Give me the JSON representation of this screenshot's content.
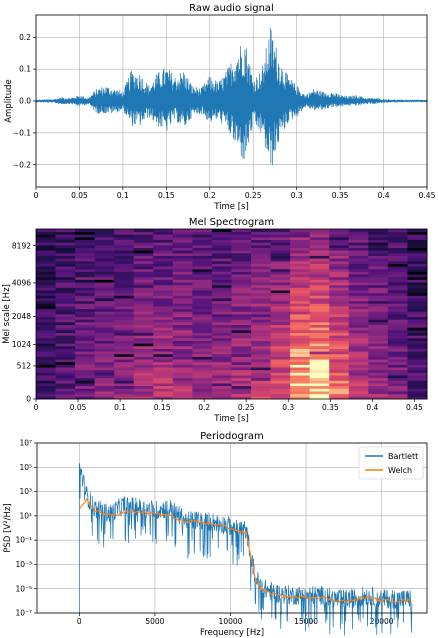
{
  "chart_data": [
    {
      "type": "line",
      "title": "Raw audio signal",
      "xlabel": "Time [s]",
      "ylabel": "Amplitude",
      "xlim": [
        0,
        0.45
      ],
      "ylim": [
        -0.27,
        0.27
      ],
      "xticks": [
        0,
        0.05,
        0.1,
        0.15,
        0.2,
        0.25,
        0.3,
        0.35,
        0.4,
        0.45
      ],
      "xtick_labels": [
        "0",
        "0.05",
        "0.1",
        "0.15",
        "0.2",
        "0.25",
        "0.3",
        "0.35",
        "0.4",
        "0.45"
      ],
      "yticks": [
        -0.2,
        -0.1,
        0.0,
        0.1,
        0.2
      ],
      "ytick_labels": [
        "−0.2",
        "−0.1",
        "0.0",
        "0.1",
        "0.2"
      ],
      "grid": true,
      "color": "#1f77b4",
      "envelope": {
        "x": [
          0,
          0.02,
          0.03,
          0.04,
          0.05,
          0.06,
          0.07,
          0.08,
          0.09,
          0.1,
          0.11,
          0.12,
          0.13,
          0.14,
          0.15,
          0.16,
          0.17,
          0.18,
          0.19,
          0.2,
          0.21,
          0.22,
          0.23,
          0.24,
          0.25,
          0.26,
          0.27,
          0.28,
          0.29,
          0.3,
          0.31,
          0.32,
          0.33,
          0.34,
          0.35,
          0.36,
          0.37,
          0.38,
          0.39,
          0.4,
          0.42,
          0.45
        ],
        "upper": [
          0.004,
          0.006,
          0.012,
          0.01,
          0.02,
          0.01,
          0.04,
          0.05,
          0.04,
          0.03,
          0.1,
          0.09,
          0.05,
          0.09,
          0.11,
          0.08,
          0.1,
          0.05,
          0.04,
          0.08,
          0.06,
          0.1,
          0.16,
          0.21,
          0.07,
          0.1,
          0.24,
          0.14,
          0.08,
          0.05,
          0.02,
          0.04,
          0.03,
          0.03,
          0.02,
          0.015,
          0.02,
          0.01,
          0.01,
          0.006,
          0.004,
          0.004
        ],
        "lower": [
          -0.004,
          -0.006,
          -0.011,
          -0.009,
          -0.018,
          -0.01,
          -0.04,
          -0.04,
          -0.04,
          -0.03,
          -0.08,
          -0.08,
          -0.05,
          -0.08,
          -0.1,
          -0.06,
          -0.09,
          -0.05,
          -0.04,
          -0.07,
          -0.06,
          -0.09,
          -0.15,
          -0.2,
          -0.08,
          -0.11,
          -0.23,
          -0.13,
          -0.07,
          -0.05,
          -0.02,
          -0.03,
          -0.03,
          -0.02,
          -0.02,
          -0.015,
          -0.015,
          -0.01,
          -0.01,
          -0.006,
          -0.004,
          -0.004
        ]
      }
    },
    {
      "type": "heatmap",
      "title": "Mel Spectrogram",
      "xlabel": "Time [s]",
      "ylabel": "Mel scale [Hz]",
      "xlim": [
        0,
        0.465
      ],
      "yscale": "mel",
      "xticks": [
        0,
        0.05,
        0.1,
        0.15,
        0.2,
        0.25,
        0.3,
        0.35,
        0.4,
        0.45
      ],
      "xtick_labels": [
        "0",
        "0.05",
        "0.1",
        "0.15",
        "0.2",
        "0.25",
        "0.3",
        "0.35",
        "0.4",
        "0.45"
      ],
      "yticks": [
        0,
        512,
        1024,
        2048,
        4096,
        8192
      ],
      "ytick_labels": [
        "0",
        "512",
        "1024",
        "2048",
        "4096",
        "8192"
      ],
      "colormap": "magma",
      "n_frames": 20,
      "frame_energy": [
        0.1,
        0.2,
        0.32,
        0.34,
        0.38,
        0.45,
        0.5,
        0.46,
        0.44,
        0.42,
        0.48,
        0.58,
        0.68,
        0.95,
        1.0,
        0.78,
        0.52,
        0.42,
        0.3,
        0.15
      ]
    },
    {
      "type": "line",
      "title": "Periodogram",
      "xlabel": "Frequency [Hz]",
      "ylabel": "PSD [V²/Hz]",
      "yscale": "log",
      "xlim": [
        -2800,
        23000
      ],
      "ylim": [
        1e-07,
        10000000.0
      ],
      "xticks": [
        0,
        5000,
        10000,
        15000,
        20000
      ],
      "xtick_labels": [
        "0",
        "5000",
        "10000",
        "15000",
        "20000"
      ],
      "yticks": [
        1e-07,
        1e-05,
        0.001,
        0.1,
        10.0,
        1000.0,
        100000.0,
        10000000.0
      ],
      "ytick_labels": [
        "10⁻⁷",
        "10⁻⁵",
        "10⁻³",
        "10⁻¹",
        "10¹",
        "10³",
        "10⁵",
        "10⁷"
      ],
      "grid": true,
      "legend": "top-right",
      "series": [
        {
          "name": "Bartlett",
          "color": "#1f77b4",
          "x": [
            0,
            500,
            1000,
            2000,
            3000,
            4000,
            5000,
            6000,
            7000,
            8000,
            9000,
            10000,
            11000,
            11300,
            11600,
            12000,
            12500,
            13000,
            14000,
            15000,
            16000,
            17000,
            18000,
            19000,
            20000,
            21000,
            22000
          ],
          "y": [
            100000,
            300,
            30,
            10,
            60,
            30,
            20,
            30,
            3,
            3,
            2,
            1,
            0.5,
            0.01,
            0.0001,
            1e-05,
            5e-06,
            3e-06,
            2e-06,
            2e-06,
            2e-06,
            1e-06,
            1e-06,
            2e-06,
            1e-06,
            1e-06,
            1e-06
          ]
        },
        {
          "name": "Welch",
          "color": "#ff7f0e",
          "x": [
            0,
            500,
            1000,
            2000,
            3000,
            4000,
            5000,
            6000,
            7000,
            8000,
            9000,
            10000,
            11000,
            11300,
            11600,
            12000,
            12500,
            13000,
            14000,
            15000,
            16000,
            17000,
            18000,
            19000,
            20000,
            21000,
            22000
          ],
          "y": [
            30,
            200,
            30,
            10,
            20,
            20,
            15,
            10,
            3,
            3,
            2,
            1,
            0.4,
            0.01,
            0.0001,
            1e-05,
            5e-06,
            3e-06,
            2e-06,
            2e-06,
            2e-06,
            1e-06,
            1e-06,
            2e-06,
            1e-06,
            1e-06,
            1e-06
          ]
        }
      ]
    }
  ]
}
